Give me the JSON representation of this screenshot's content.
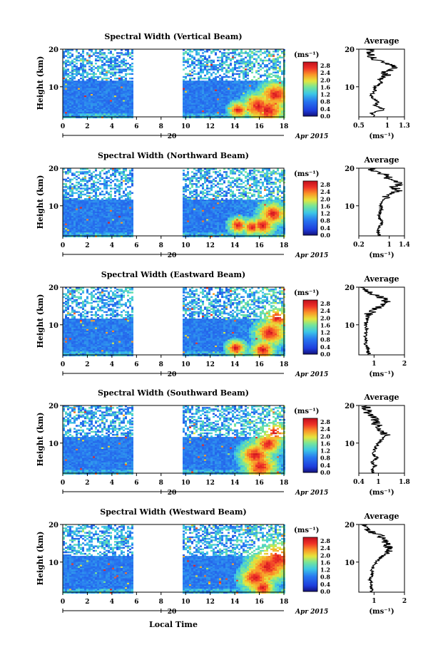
{
  "figure": {
    "date_label": "Apr 2015",
    "day_label": "20",
    "xlabel": "Local Time",
    "colorbar_unit": "(ms⁻¹)",
    "colorbar_ticks": [
      "0.0",
      "0.4",
      "0.8",
      "1.2",
      "1.6",
      "2.0",
      "2.4",
      "2.8"
    ],
    "avg_title": "Average",
    "avg_unit": "(ms⁻¹)"
  },
  "chart_data": [
    {
      "type": "heatmap",
      "title": "Spectral Width (Vertical Beam)",
      "xlabel": "Local Time",
      "ylabel": "Height (km)",
      "xlim": [
        0,
        18
      ],
      "ylim": [
        2,
        20
      ],
      "x_ticks": [
        "0",
        "2",
        "4",
        "6",
        "8",
        "10",
        "12",
        "14",
        "16",
        "18"
      ],
      "y_ticks": [
        "20",
        "10"
      ],
      "data_gap_hours": [
        5.6,
        9.7
      ],
      "colorbar": {
        "min": 0.0,
        "max": 3.0,
        "unit": "ms^-1"
      },
      "average_profile": {
        "xlim": [
          0.5,
          1.3
        ],
        "x_ticks": [
          "0.5",
          "1",
          "1.3"
        ],
        "height_km": [
          2,
          3,
          4,
          5,
          6,
          7,
          8,
          9,
          10,
          11,
          12,
          13,
          14,
          15,
          16,
          17,
          18,
          19,
          20
        ],
        "width_ms": [
          0.8,
          0.72,
          0.95,
          0.78,
          0.85,
          0.75,
          0.72,
          0.8,
          0.78,
          0.9,
          0.85,
          1.0,
          0.95,
          1.15,
          1.05,
          0.8,
          0.72,
          0.68,
          0.7
        ]
      }
    },
    {
      "type": "heatmap",
      "title": "Spectral Width (Northward Beam)",
      "xlabel": "Local Time",
      "ylabel": "Height (km)",
      "xlim": [
        0,
        18
      ],
      "ylim": [
        2,
        20
      ],
      "x_ticks": [
        "0",
        "2",
        "4",
        "6",
        "8",
        "10",
        "12",
        "14",
        "16",
        "18"
      ],
      "y_ticks": [
        "20",
        "10"
      ],
      "data_gap_hours": [
        5.6,
        9.7
      ],
      "colorbar": {
        "min": 0.0,
        "max": 3.0,
        "unit": "ms^-1"
      },
      "average_profile": {
        "xlim": [
          0.2,
          1.4
        ],
        "x_ticks": [
          "0.2",
          "1",
          "1.4"
        ],
        "height_km": [
          2,
          3,
          4,
          5,
          6,
          7,
          8,
          9,
          10,
          11,
          12,
          13,
          14,
          15,
          16,
          17,
          18,
          19,
          20
        ],
        "width_ms": [
          0.75,
          0.7,
          0.72,
          0.78,
          0.8,
          0.72,
          0.75,
          0.8,
          0.78,
          0.82,
          0.9,
          0.95,
          1.25,
          1.1,
          1.3,
          0.95,
          1.05,
          0.6,
          0.55
        ]
      }
    },
    {
      "type": "heatmap",
      "title": "Spectral Width (Eastward Beam)",
      "xlabel": "Local Time",
      "ylabel": "Height (km)",
      "xlim": [
        0,
        18
      ],
      "ylim": [
        2,
        20
      ],
      "x_ticks": [
        "0",
        "2",
        "4",
        "6",
        "8",
        "10",
        "12",
        "14",
        "16",
        "18"
      ],
      "y_ticks": [
        "20",
        "10"
      ],
      "data_gap_hours": [
        5.6,
        9.7
      ],
      "colorbar": {
        "min": 0.0,
        "max": 3.0,
        "unit": "ms^-1"
      },
      "average_profile": {
        "xlim": [
          0.5,
          2.0
        ],
        "x_ticks": [
          "1",
          "2"
        ],
        "height_km": [
          2,
          3,
          4,
          5,
          6,
          7,
          8,
          9,
          10,
          11,
          12,
          13,
          14,
          15,
          16,
          17,
          18,
          19,
          20
        ],
        "width_ms": [
          0.85,
          0.8,
          0.78,
          0.72,
          0.75,
          0.7,
          0.72,
          0.75,
          0.7,
          0.75,
          0.78,
          0.85,
          1.0,
          1.25,
          1.4,
          1.3,
          1.05,
          0.8,
          0.6
        ]
      }
    },
    {
      "type": "heatmap",
      "title": "Spectral Width (Southward Beam)",
      "xlabel": "Local Time",
      "ylabel": "Height (km)",
      "xlim": [
        0,
        18
      ],
      "ylim": [
        2,
        20
      ],
      "x_ticks": [
        "0",
        "2",
        "4",
        "6",
        "8",
        "10",
        "12",
        "14",
        "16",
        "18"
      ],
      "y_ticks": [
        "20",
        "10"
      ],
      "data_gap_hours": [
        5.6,
        9.7
      ],
      "colorbar": {
        "min": 0.0,
        "max": 3.0,
        "unit": "ms^-1"
      },
      "average_profile": {
        "xlim": [
          0.4,
          1.8
        ],
        "x_ticks": [
          "0.4",
          "1",
          "1.8"
        ],
        "height_km": [
          2,
          3,
          4,
          5,
          6,
          7,
          8,
          9,
          10,
          11,
          12,
          13,
          14,
          15,
          16,
          17,
          18,
          19,
          20
        ],
        "width_ms": [
          0.85,
          0.8,
          0.9,
          0.78,
          0.95,
          0.85,
          0.88,
          0.92,
          1.0,
          1.1,
          1.25,
          1.15,
          1.05,
          0.95,
          0.9,
          0.8,
          0.7,
          0.65,
          0.6
        ]
      }
    },
    {
      "type": "heatmap",
      "title": "Spectral Width (Westward Beam)",
      "xlabel": "Local Time",
      "ylabel": "Height (km)",
      "xlim": [
        0,
        18
      ],
      "ylim": [
        2,
        20
      ],
      "x_ticks": [
        "0",
        "2",
        "4",
        "6",
        "8",
        "10",
        "12",
        "14",
        "16",
        "18"
      ],
      "y_ticks": [
        "20",
        "10"
      ],
      "data_gap_hours": [
        5.6,
        9.7
      ],
      "colorbar": {
        "min": 0.0,
        "max": 3.0,
        "unit": "ms^-1"
      },
      "average_profile": {
        "xlim": [
          0.5,
          2.0
        ],
        "x_ticks": [
          "1",
          "2"
        ],
        "height_km": [
          2,
          3,
          4,
          5,
          6,
          7,
          8,
          9,
          10,
          11,
          12,
          13,
          14,
          15,
          16,
          17,
          18,
          19,
          20
        ],
        "width_ms": [
          0.95,
          0.9,
          0.92,
          0.88,
          0.9,
          0.95,
          0.92,
          1.0,
          1.05,
          1.2,
          1.35,
          1.45,
          1.5,
          1.4,
          1.35,
          1.2,
          0.9,
          0.75,
          0.7
        ]
      }
    }
  ]
}
